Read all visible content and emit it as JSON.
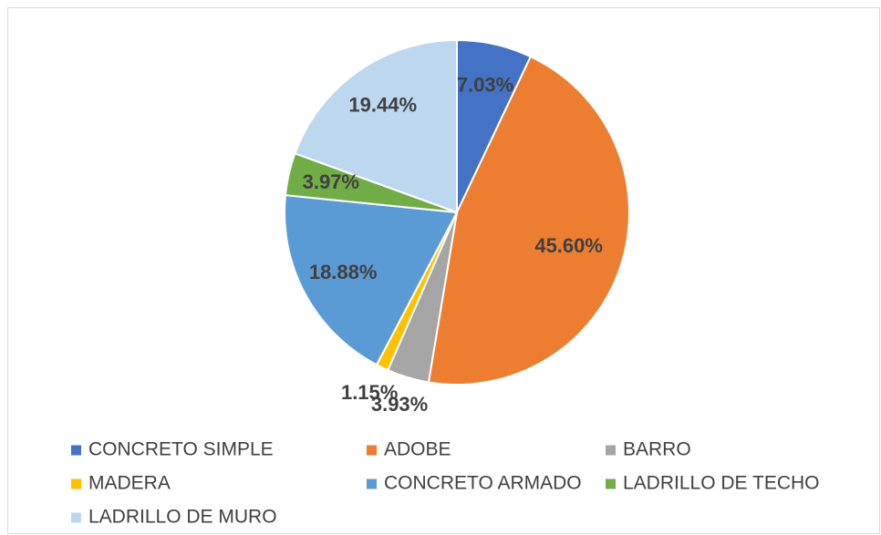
{
  "chart_data": {
    "type": "pie",
    "categories": [
      "CONCRETO SIMPLE",
      "ADOBE",
      "BARRO",
      "MADERA",
      "CONCRETO ARMADO",
      "LADRILLO DE TECHO",
      "LADRILLO DE MURO"
    ],
    "values": [
      7.03,
      45.6,
      3.93,
      1.15,
      18.88,
      3.97,
      19.44
    ],
    "value_labels": [
      "7.03%",
      "45.60%",
      "3.93%",
      "1.15%",
      "18.88%",
      "3.97%",
      "19.44%"
    ],
    "colors": [
      "#4472c4",
      "#ed7d31",
      "#a5a5a5",
      "#ffc000",
      "#5b9bd5",
      "#70ad47",
      "#bdd7ee"
    ],
    "legend": "bottom"
  }
}
